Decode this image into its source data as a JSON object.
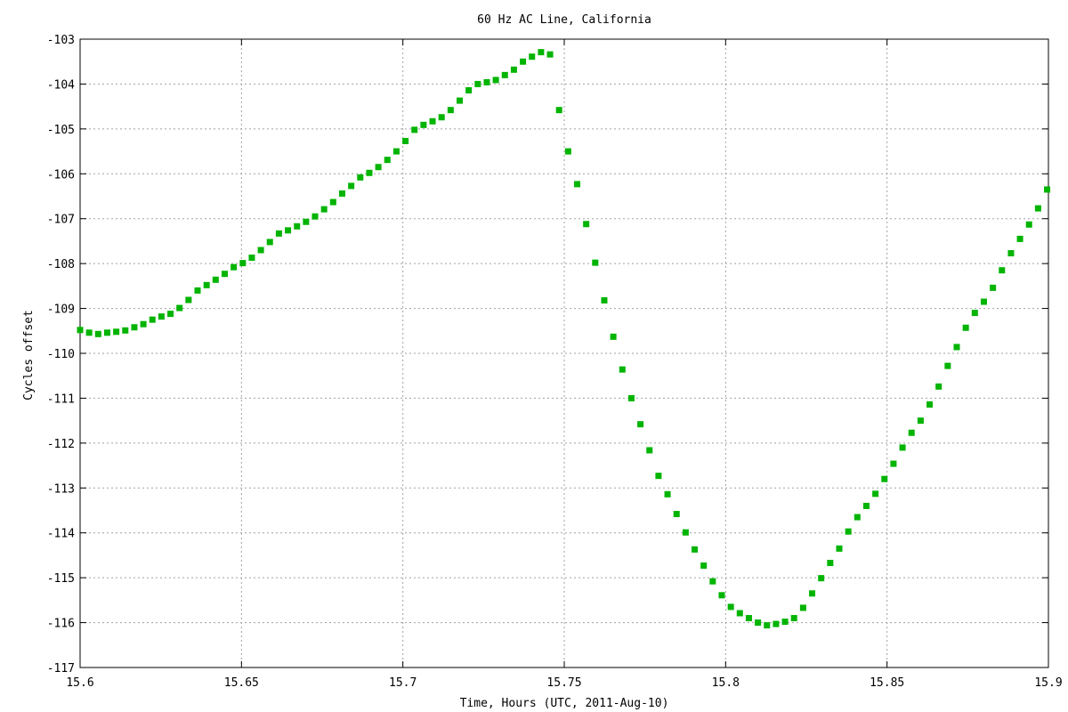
{
  "chart_data": {
    "type": "scatter",
    "title": "60 Hz AC Line, California",
    "xlabel": "Time, Hours (UTC, 2011-Aug-10)",
    "ylabel": "Cycles offset",
    "xlim": [
      15.6,
      15.9
    ],
    "ylim": [
      -117,
      -103
    ],
    "x_ticks": [
      {
        "value": 15.6,
        "label": "15.6"
      },
      {
        "value": 15.65,
        "label": "15.65"
      },
      {
        "value": 15.7,
        "label": "15.7"
      },
      {
        "value": 15.75,
        "label": "15.75"
      },
      {
        "value": 15.8,
        "label": "15.8"
      },
      {
        "value": 15.85,
        "label": "15.85"
      },
      {
        "value": 15.9,
        "label": "15.9"
      }
    ],
    "y_ticks": [
      {
        "value": -103,
        "label": "-103"
      },
      {
        "value": -104,
        "label": "-104"
      },
      {
        "value": -105,
        "label": "-105"
      },
      {
        "value": -106,
        "label": "-106"
      },
      {
        "value": -107,
        "label": "-107"
      },
      {
        "value": -108,
        "label": "-108"
      },
      {
        "value": -109,
        "label": "-109"
      },
      {
        "value": -110,
        "label": "-110"
      },
      {
        "value": -111,
        "label": "-111"
      },
      {
        "value": -112,
        "label": "-112"
      },
      {
        "value": -113,
        "label": "-113"
      },
      {
        "value": -114,
        "label": "-114"
      },
      {
        "value": -115,
        "label": "-115"
      },
      {
        "value": -116,
        "label": "-116"
      },
      {
        "value": -117,
        "label": "-117"
      }
    ],
    "grid": true,
    "marker": "square",
    "color": "#00b400",
    "series": [
      {
        "x": [
          15.6,
          15.6028,
          15.6056,
          15.6084,
          15.6112,
          15.614,
          15.6168,
          15.6196,
          15.6224,
          15.6252,
          15.628,
          15.6308,
          15.6336,
          15.6364,
          15.6392,
          15.642,
          15.6448,
          15.6476,
          15.6504,
          15.6532,
          15.656,
          15.6588,
          15.6616,
          15.6644,
          15.6672,
          15.67,
          15.6728,
          15.6756,
          15.6784,
          15.6812,
          15.684,
          15.6868,
          15.6896,
          15.6924,
          15.6952,
          15.698,
          15.7008,
          15.7036,
          15.7064,
          15.7092,
          15.712,
          15.7148,
          15.7176,
          15.7204,
          15.7232,
          15.726,
          15.7288,
          15.7316,
          15.7344,
          15.7372,
          15.74,
          15.7428,
          15.7456,
          15.7484,
          15.7512,
          15.754,
          15.7568,
          15.7596,
          15.7624,
          15.7652,
          15.768,
          15.7708,
          15.7736,
          15.7764,
          15.7792,
          15.782,
          15.7848,
          15.7876,
          15.7904,
          15.7932,
          15.796,
          15.7988,
          15.8016,
          15.8044,
          15.8072,
          15.81,
          15.8128,
          15.8156,
          15.8184,
          15.8212,
          15.824,
          15.8268,
          15.8296,
          15.8324,
          15.8352,
          15.838,
          15.8408,
          15.8436,
          15.8464,
          15.8492,
          15.852,
          15.8548,
          15.8576,
          15.8604,
          15.8632,
          15.866,
          15.8688,
          15.8716,
          15.8744,
          15.8772,
          15.88,
          15.8828,
          15.8856,
          15.8884,
          15.8912,
          15.894,
          15.8968,
          15.8996
        ],
        "y": [
          -109.48,
          -109.54,
          -109.57,
          -109.54,
          -109.52,
          -109.49,
          -109.42,
          -109.35,
          -109.25,
          -109.18,
          -109.12,
          -108.99,
          -108.81,
          -108.6,
          -108.48,
          -108.36,
          -108.23,
          -108.08,
          -107.99,
          -107.87,
          -107.7,
          -107.52,
          -107.33,
          -107.26,
          -107.17,
          -107.07,
          -106.95,
          -106.79,
          -106.63,
          -106.44,
          -106.27,
          -106.08,
          -105.98,
          -105.85,
          -105.69,
          -105.5,
          -105.27,
          -105.02,
          -104.91,
          -104.83,
          -104.74,
          -104.58,
          -104.37,
          -104.14,
          -104.0,
          -103.96,
          -103.91,
          -103.8,
          -103.68,
          -103.5,
          -103.39,
          -103.29,
          -103.34,
          -104.58,
          -105.5,
          -106.23,
          -107.12,
          -107.98,
          -108.82,
          -109.63,
          -110.36,
          -111.0,
          -111.58,
          -112.16,
          -112.73,
          -113.14,
          -113.58,
          -113.99,
          -114.37,
          -114.73,
          -115.08,
          -115.39,
          -115.65,
          -115.79,
          -115.9,
          -116.0,
          -116.06,
          -116.03,
          -115.98,
          -115.9,
          -115.67,
          -115.35,
          -115.01,
          -114.67,
          -114.35,
          -113.97,
          -113.65,
          -113.4,
          -113.13,
          -112.8,
          -112.46,
          -112.1,
          -111.77,
          -111.5,
          -111.14,
          -110.74,
          -110.28,
          -109.86,
          -109.43,
          -109.1,
          -108.85,
          -108.54,
          -108.15,
          -107.77,
          -107.45,
          -107.13,
          -106.77,
          -106.35
        ]
      }
    ]
  }
}
